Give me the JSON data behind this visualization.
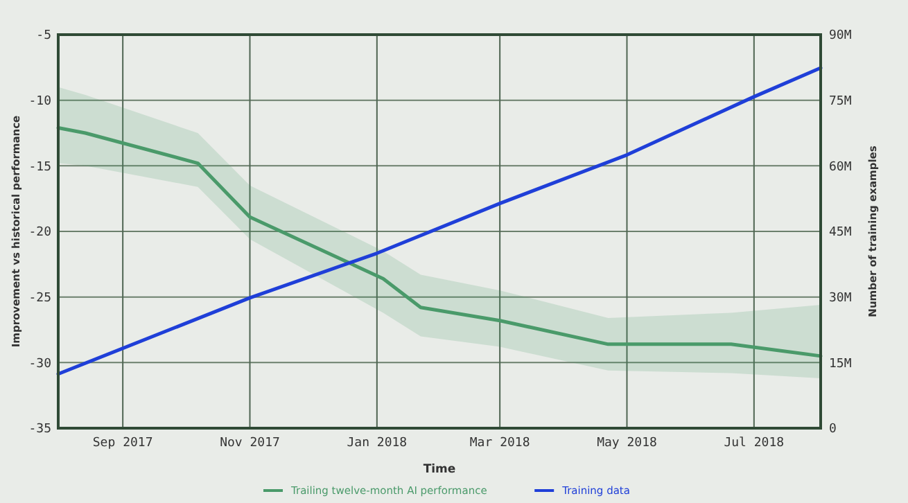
{
  "chart_data": {
    "type": "line",
    "xlabel": "Time",
    "ylabel": "Improvement vs historical performance",
    "y2label": "Number of training examples",
    "xlim": [
      "2017-08-01",
      "2018-08-02"
    ],
    "xticks": [
      {
        "value": "2017-09-01",
        "label": "Sep 2017"
      },
      {
        "value": "2017-11-01",
        "label": "Nov 2017"
      },
      {
        "value": "2018-01-01",
        "label": "Jan 2018"
      },
      {
        "value": "2018-03-01",
        "label": "Mar 2018"
      },
      {
        "value": "2018-05-01",
        "label": "May 2018"
      },
      {
        "value": "2018-07-01",
        "label": "Jul 2018"
      }
    ],
    "ylim": [
      -35,
      -5
    ],
    "yticks": [
      -35,
      -30,
      -25,
      -20,
      -15,
      -10,
      -5
    ],
    "y2lim": [
      0,
      90
    ],
    "y2ticks": [
      {
        "value": 0,
        "label": "0"
      },
      {
        "value": 15,
        "label": "15M"
      },
      {
        "value": 30,
        "label": "30M"
      },
      {
        "value": 45,
        "label": "45M"
      },
      {
        "value": 60,
        "label": "60M"
      },
      {
        "value": 75,
        "label": "75M"
      },
      {
        "value": 90,
        "label": "90M"
      }
    ],
    "grid": true,
    "legend": "bottom",
    "line_style": "solid",
    "marker": "none",
    "series": [
      {
        "name": "Trailing twelve-month AI performance",
        "color": "#4a9a6a",
        "x": [
          "2017-08-01",
          "2017-08-14",
          "2017-10-07",
          "2017-11-01",
          "2018-01-04",
          "2018-01-22",
          "2018-03-01",
          "2018-04-22",
          "2018-06-20",
          "2018-08-02"
        ],
        "values": [
          -12.1,
          -12.5,
          -14.8,
          -18.9,
          -23.6,
          -25.8,
          -26.8,
          -28.6,
          -28.6,
          -29.5
        ],
        "upper": [
          -9,
          -9.6,
          -12.5,
          -16.5,
          -21.5,
          -23.3,
          -24.5,
          -26.6,
          -26.2,
          -25.6
        ],
        "lower": [
          -14.8,
          -15,
          -16.6,
          -20.6,
          -26.2,
          -28,
          -28.8,
          -30.6,
          -30.8,
          -31.2
        ]
      },
      {
        "name": "Training data",
        "color": "#1f3fd8",
        "axis": "y2",
        "x": [
          "2017-08-01",
          "2017-11-01",
          "2018-01-01",
          "2018-03-01",
          "2018-05-01",
          "2018-07-01",
          "2018-08-02"
        ],
        "values": [
          12.4,
          29.8,
          40,
          51.4,
          62.5,
          75.8,
          82.4
        ]
      }
    ]
  }
}
